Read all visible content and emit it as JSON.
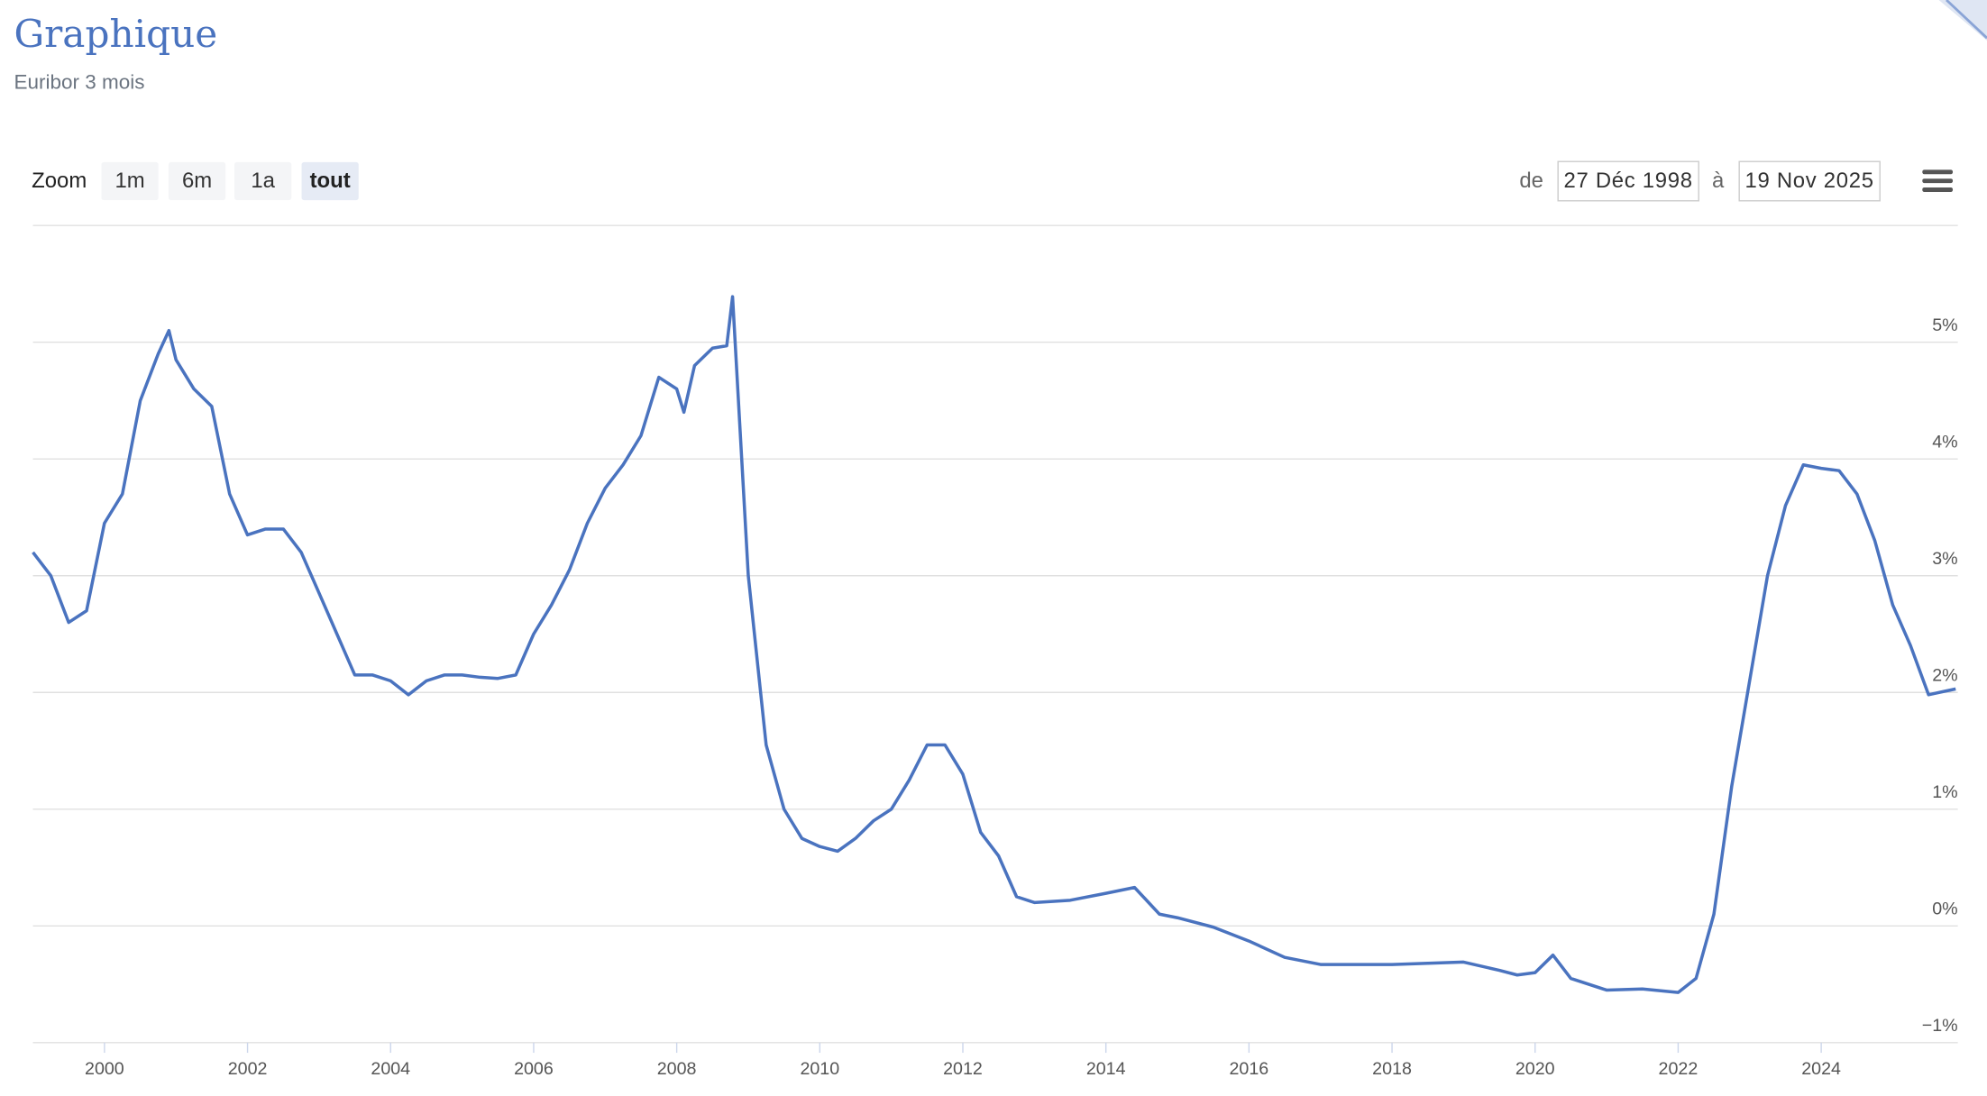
{
  "header": {
    "title": "Graphique",
    "subtitle": "Euribor 3 mois"
  },
  "zoom": {
    "label": "Zoom",
    "buttons": [
      "1m",
      "6m",
      "1a",
      "tout"
    ],
    "selected": 3
  },
  "range": {
    "from_label": "de",
    "from": "27 Déc 1998",
    "to_label": "à",
    "to": "19 Nov 2025"
  },
  "chart_data": {
    "type": "line",
    "x": [
      1999.0,
      1999.25,
      1999.5,
      1999.75,
      2000.0,
      2000.25,
      2000.5,
      2000.75,
      2000.9,
      2001.0,
      2001.25,
      2001.5,
      2001.75,
      2002.0,
      2002.25,
      2002.5,
      2002.75,
      2003.0,
      2003.25,
      2003.5,
      2003.75,
      2004.0,
      2004.25,
      2004.5,
      2004.75,
      2005.0,
      2005.25,
      2005.5,
      2005.75,
      2006.0,
      2006.25,
      2006.5,
      2006.75,
      2007.0,
      2007.25,
      2007.5,
      2007.75,
      2008.0,
      2008.1,
      2008.25,
      2008.5,
      2008.7,
      2008.78,
      2009.0,
      2009.25,
      2009.5,
      2009.75,
      2010.0,
      2010.25,
      2010.5,
      2010.75,
      2011.0,
      2011.25,
      2011.5,
      2011.75,
      2012.0,
      2012.25,
      2012.5,
      2012.75,
      2013.0,
      2013.5,
      2014.0,
      2014.4,
      2014.75,
      2015.0,
      2015.5,
      2016.0,
      2016.5,
      2017.0,
      2018.0,
      2019.0,
      2019.5,
      2019.75,
      2020.0,
      2020.25,
      2020.5,
      2021.0,
      2021.5,
      2022.0,
      2022.25,
      2022.5,
      2022.75,
      2023.0,
      2023.25,
      2023.5,
      2023.75,
      2024.0,
      2024.25,
      2024.5,
      2024.75,
      2025.0,
      2025.25,
      2025.5,
      2025.88
    ],
    "series": [
      {
        "name": "Euribor 3 mois",
        "color": "#4a73bf",
        "values": [
          3.2,
          3.0,
          2.6,
          2.7,
          3.45,
          3.7,
          4.5,
          4.9,
          5.1,
          4.85,
          4.6,
          4.45,
          3.7,
          3.35,
          3.4,
          3.4,
          3.2,
          2.85,
          2.5,
          2.15,
          2.15,
          2.1,
          1.98,
          2.1,
          2.15,
          2.15,
          2.13,
          2.12,
          2.15,
          2.5,
          2.75,
          3.05,
          3.45,
          3.75,
          3.95,
          4.2,
          4.7,
          4.6,
          4.4,
          4.8,
          4.95,
          4.97,
          5.39,
          3.0,
          1.55,
          1.0,
          0.75,
          0.68,
          0.64,
          0.75,
          0.9,
          1.0,
          1.25,
          1.55,
          1.55,
          1.3,
          0.8,
          0.6,
          0.25,
          0.2,
          0.22,
          0.28,
          0.33,
          0.1,
          0.07,
          -0.01,
          -0.13,
          -0.27,
          -0.33,
          -0.33,
          -0.31,
          -0.38,
          -0.42,
          -0.4,
          -0.25,
          -0.45,
          -0.55,
          -0.54,
          -0.57,
          -0.45,
          0.1,
          1.2,
          2.1,
          3.0,
          3.6,
          3.95,
          3.92,
          3.9,
          3.7,
          3.3,
          2.75,
          2.4,
          1.98,
          2.03
        ]
      }
    ],
    "xlim": [
      1999.0,
      2025.91
    ],
    "xticks": [
      2000,
      2002,
      2004,
      2006,
      2008,
      2010,
      2012,
      2014,
      2016,
      2018,
      2020,
      2022,
      2024
    ],
    "ylim": [
      -1,
      6
    ],
    "yticks": [
      {
        "value": -1,
        "label": "−1%"
      },
      {
        "value": 0,
        "label": "0%"
      },
      {
        "value": 1,
        "label": "1%"
      },
      {
        "value": 2,
        "label": "2%"
      },
      {
        "value": 3,
        "label": "3%"
      },
      {
        "value": 4,
        "label": "4%"
      },
      {
        "value": 5,
        "label": "5%"
      }
    ],
    "grid": true
  }
}
